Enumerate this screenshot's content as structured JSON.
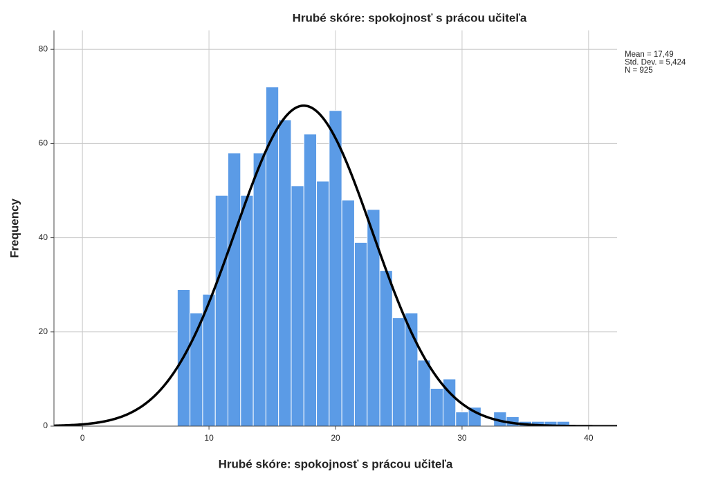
{
  "chart_data": {
    "type": "histogram",
    "title": "Hrubé skóre: spokojnosť s prácou učiteľa",
    "x_label": "Hrubé skóre: spokojnosť s prácou učiteľa",
    "y_label": "Frequency",
    "bins": [
      7.5,
      8.5,
      9.5,
      10.5,
      11.5,
      12.5,
      13.5,
      14.5,
      15.5,
      16.5,
      17.5,
      18.5,
      19.5,
      20.5,
      21.5,
      22.5,
      23.5,
      24.5,
      25.5,
      26.5,
      27.5,
      28.5,
      29.5,
      30.5,
      31.5,
      32.5,
      33.5,
      34.5,
      35.5,
      36.5,
      37.5,
      38.5
    ],
    "counts": [
      29,
      24,
      28,
      49,
      58,
      49,
      58,
      72,
      65,
      51,
      62,
      52,
      67,
      48,
      39,
      46,
      33,
      23,
      24,
      14,
      8,
      10,
      3,
      4,
      0,
      3,
      2,
      1,
      1,
      1,
      1
    ],
    "color": "#5b9be6",
    "curve_color": "#000000",
    "stats": [
      {
        "value": 17.49,
        "label": "Mean = 17,49"
      },
      {
        "value": 5.424,
        "label": "Std. Dev. = 5,424"
      },
      {
        "value": 925,
        "label": "N = 925"
      }
    ],
    "xlim": [
      -2.25,
      42.25
    ],
    "xticks": [
      0,
      10,
      20,
      30,
      40
    ],
    "ylim": [
      0,
      84
    ],
    "yticks": [
      0,
      20,
      40,
      60,
      80
    ],
    "grid": true
  }
}
